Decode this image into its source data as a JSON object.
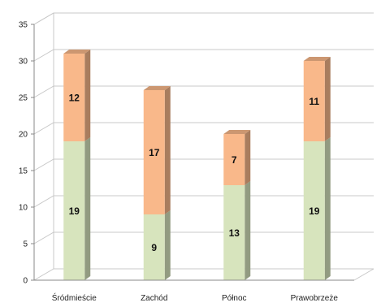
{
  "chart_data": {
    "type": "bar",
    "stacked": true,
    "three_d": true,
    "title": "",
    "xlabel": "",
    "ylabel": "",
    "categories": [
      "Śródmieście",
      "Zachód",
      "Północ",
      "Prawobrzeże"
    ],
    "series": [
      {
        "values": [
          19,
          9,
          13,
          19
        ],
        "color": "#d7e4bd"
      },
      {
        "values": [
          12,
          17,
          7,
          11
        ],
        "color": "#f9b88a"
      }
    ],
    "ylim": [
      0,
      35
    ],
    "yticks": [
      0,
      5,
      10,
      15,
      20,
      25,
      30,
      35
    ],
    "grid": true,
    "legend": "none"
  }
}
